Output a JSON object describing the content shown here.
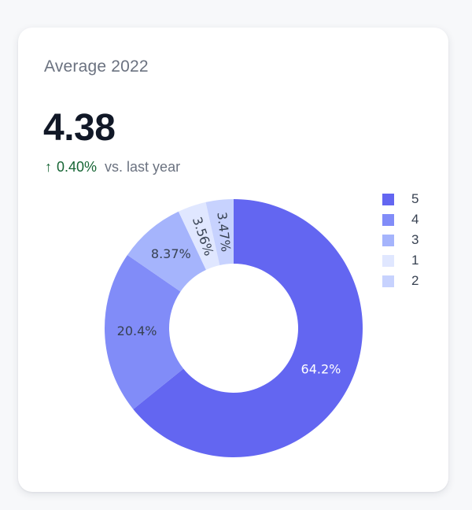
{
  "card": {
    "title": "Average 2022",
    "value": "4.38",
    "delta_arrow": "↑",
    "delta_percent": "0.40%",
    "delta_text": "vs. last year"
  },
  "colors": {
    "positive": "#166534"
  },
  "chart_data": {
    "type": "pie",
    "hole": true,
    "labels": [
      "5",
      "4",
      "3",
      "1",
      "2"
    ],
    "values": [
      64.2,
      20.4,
      8.37,
      3.56,
      3.47
    ],
    "text": [
      "64.2%",
      "20.4%",
      "8.37%",
      "3.56%",
      "3.47%"
    ],
    "colors": [
      "#6366f1",
      "#818cf8",
      "#a5b4fc",
      "#e0e7ff",
      "#c7d2fe"
    ],
    "text_colors": [
      "#ffffff",
      "#374151",
      "#374151",
      "#374151",
      "#374151"
    ],
    "legend_position": "right"
  }
}
